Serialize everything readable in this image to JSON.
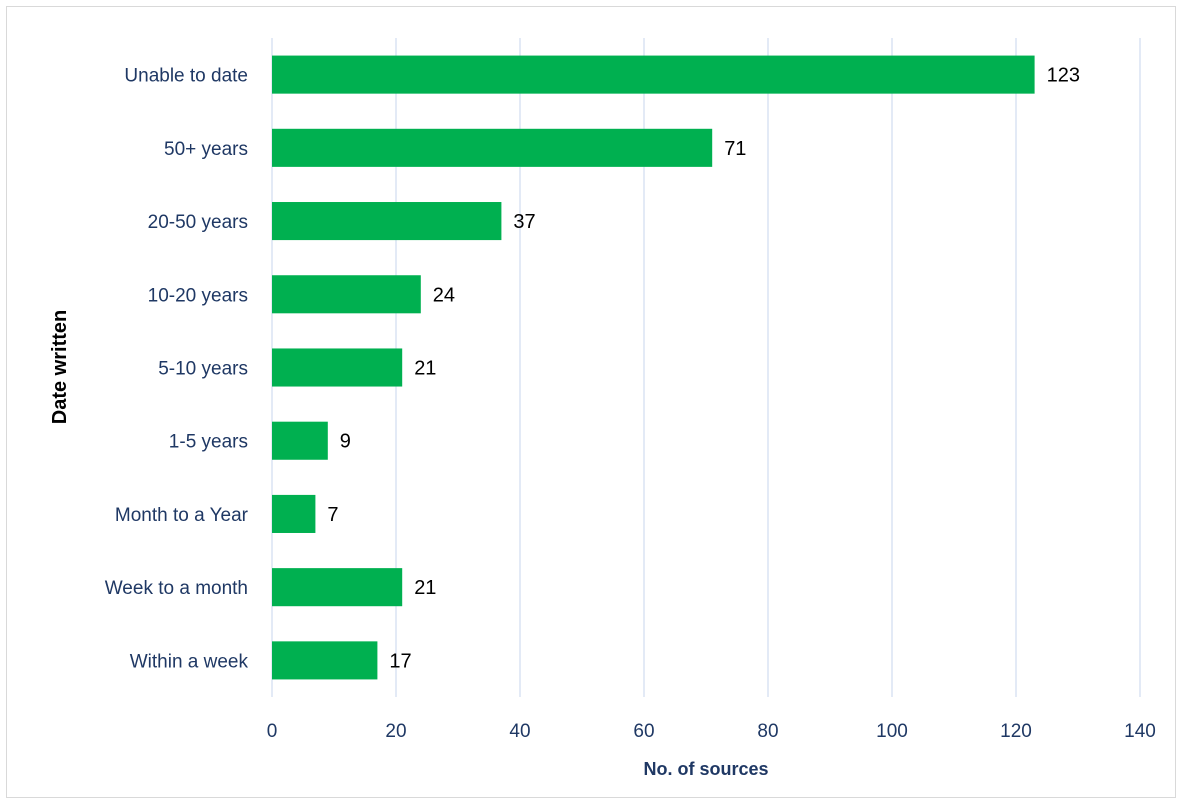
{
  "chart_data": {
    "type": "bar",
    "orientation": "horizontal",
    "categories": [
      "Unable to date",
      "50+ years",
      "20-50 years",
      "10-20 years",
      "5-10 years",
      "1-5 years",
      "Month to a Year",
      "Week to a month",
      "Within a week"
    ],
    "values": [
      123,
      71,
      37,
      24,
      21,
      9,
      7,
      21,
      17
    ],
    "xlabel": "No. of sources",
    "ylabel": "Date written",
    "xlim": [
      0,
      140
    ],
    "x_ticks": [
      0,
      20,
      40,
      60,
      80,
      100,
      120,
      140
    ],
    "grid": "vertical",
    "data_labels": true,
    "bar_color": "#00b050",
    "gridline_color": "#dae3f3",
    "tick_label_color": "#1f3864"
  }
}
